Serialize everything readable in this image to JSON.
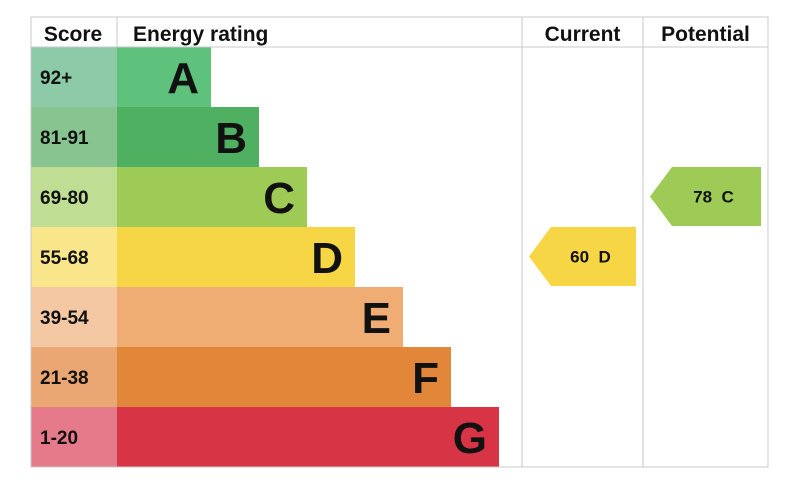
{
  "chart_data": {
    "type": "bar",
    "headers": {
      "score": "Score",
      "rating": "Energy rating",
      "current": "Current",
      "potential": "Potential"
    },
    "bands": [
      {
        "score": "92+",
        "letter": "A",
        "color": "#5ec17c",
        "score_bg": "#8ccaa8"
      },
      {
        "score": "81-91",
        "letter": "B",
        "color": "#4fb062",
        "score_bg": "#88c48f"
      },
      {
        "score": "69-80",
        "letter": "C",
        "color": "#9ecb56",
        "score_bg": "#bfde94"
      },
      {
        "score": "55-68",
        "letter": "D",
        "color": "#f6d645",
        "score_bg": "#f9e58a"
      },
      {
        "score": "39-54",
        "letter": "E",
        "color": "#f0ad73",
        "score_bg": "#f4c8a3"
      },
      {
        "score": "21-38",
        "letter": "F",
        "color": "#e2873a",
        "score_bg": "#eaa774"
      },
      {
        "score": "1-20",
        "letter": "G",
        "color": "#d73445",
        "score_bg": "#e57a8b"
      }
    ],
    "current": {
      "value": 60,
      "letter": "D",
      "label": "60  D",
      "color": "#f6d645"
    },
    "potential": {
      "value": 78,
      "letter": "C",
      "label": "78  C",
      "color": "#9ecb56"
    }
  }
}
